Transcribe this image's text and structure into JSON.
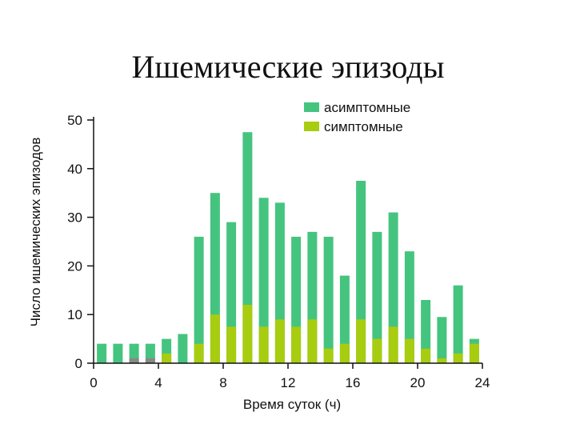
{
  "chart_data": {
    "type": "bar",
    "title": "Ишемические эпизоды",
    "xlabel": "Время суток (ч)",
    "ylabel": "Число ишемических эпизодов",
    "xlim": [
      0,
      24
    ],
    "ylim": [
      0,
      50
    ],
    "xticks": [
      "0",
      "4",
      "8",
      "12",
      "16",
      "20",
      "24"
    ],
    "yticks": [
      "0",
      "10",
      "20",
      "30",
      "40",
      "50"
    ],
    "legend_position": "top-right",
    "x": [
      0.5,
      1.5,
      2.5,
      3.5,
      4.5,
      5.5,
      6.5,
      7.5,
      8.5,
      9.5,
      10.5,
      11.5,
      12.5,
      13.5,
      14.5,
      15.5,
      16.5,
      17.5,
      18.5,
      19.5,
      20.5,
      21.5,
      22.5,
      23.5
    ],
    "series": [
      {
        "name": "асимптомные",
        "color": "#45c47f",
        "values": [
          4,
          4,
          4,
          4,
          5,
          6,
          26,
          35,
          29,
          47.5,
          34,
          33,
          26,
          27,
          26,
          18,
          37.5,
          27,
          31,
          23,
          13,
          9.5,
          16,
          5
        ]
      },
      {
        "name": "симптомные",
        "color": "#a8cc10",
        "values": [
          0,
          0,
          0,
          0,
          2,
          0,
          4,
          10,
          7.5,
          12,
          7.5,
          9,
          7.5,
          9,
          3,
          4,
          9,
          5,
          7.5,
          5,
          3,
          1,
          2,
          4
        ]
      },
      {
        "name": "",
        "color": "#888888",
        "values": [
          0,
          0,
          1,
          1,
          0,
          0,
          0,
          0,
          0,
          0,
          0,
          0,
          0,
          0,
          0,
          0,
          0,
          0,
          0,
          0,
          0,
          0,
          0,
          0
        ]
      }
    ]
  }
}
